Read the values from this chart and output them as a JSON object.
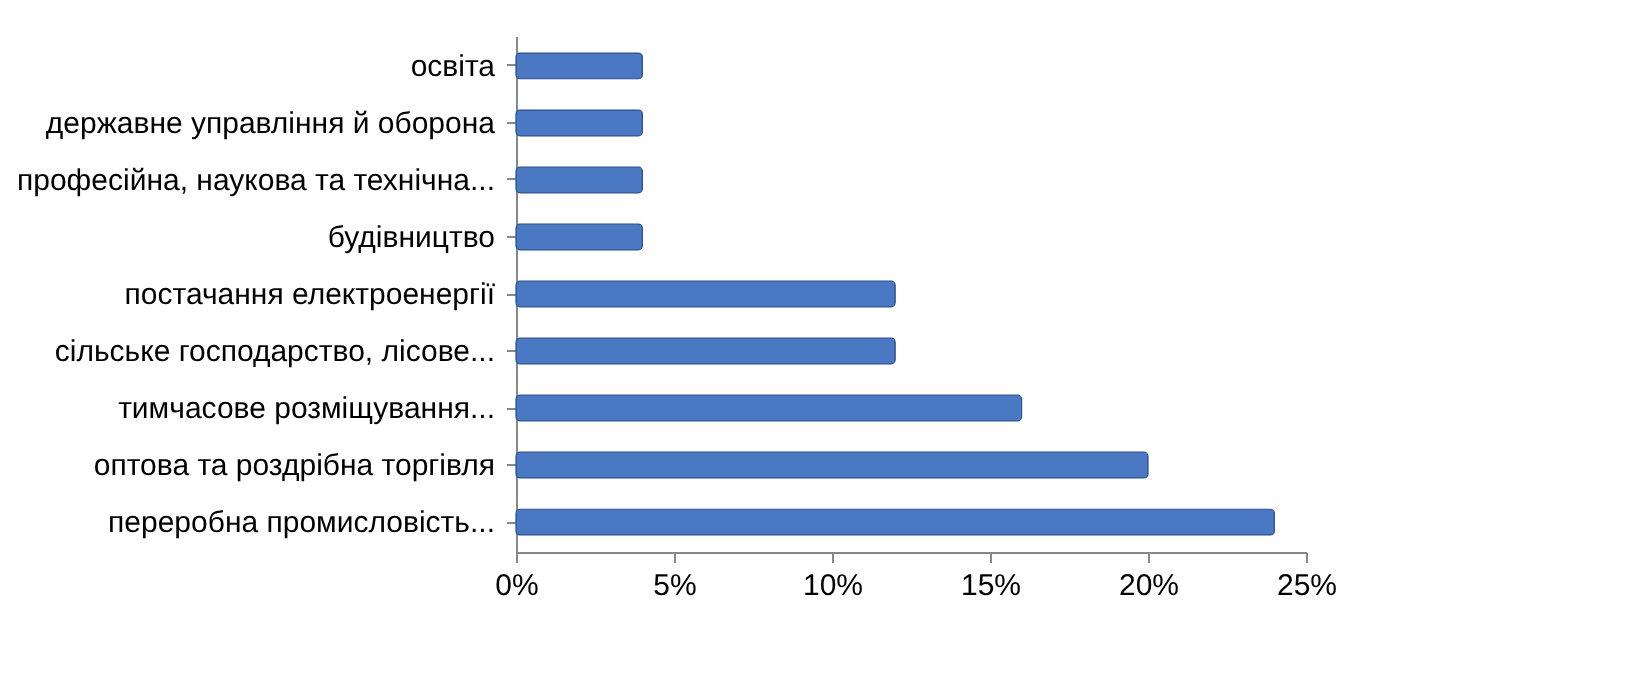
{
  "chart_data": {
    "type": "bar",
    "orientation": "horizontal",
    "categories": [
      "освіта ",
      "державне управління й оборона ",
      "професійна, наукова та технічна...",
      "будівництво ",
      "постачання електроенергії ",
      "сільське господарство, лісове...",
      "тимчасове розміщування...",
      "оптова та роздрібна торгівля ",
      "переробна промисловість..."
    ],
    "values": [
      4,
      4,
      4,
      4,
      12,
      12,
      16,
      20,
      24
    ],
    "color": "#4a78c2",
    "xlim": [
      0,
      25
    ],
    "xticks": [
      {
        "value": 0,
        "label": "0%"
      },
      {
        "value": 5,
        "label": "5%"
      },
      {
        "value": 10,
        "label": "10%"
      },
      {
        "value": 15,
        "label": "15%"
      },
      {
        "value": 20,
        "label": "20%"
      },
      {
        "value": 25,
        "label": "25%"
      }
    ],
    "grid": false
  }
}
